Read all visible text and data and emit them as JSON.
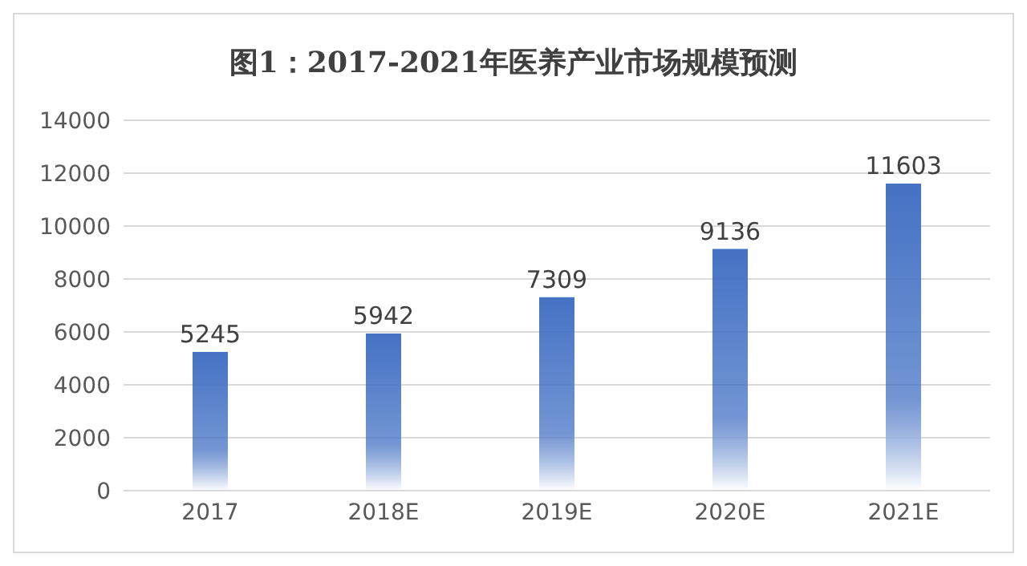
{
  "chart_data": {
    "type": "bar",
    "title": "图1：2017-2021年医养产业市场规模预测",
    "categories": [
      "2017",
      "2018E",
      "2019E",
      "2020E",
      "2021E"
    ],
    "values": [
      5245,
      5942,
      7309,
      9136,
      11603
    ],
    "color": "#4472c4",
    "ylim": [
      0,
      14000
    ],
    "yticks": [
      0,
      2000,
      4000,
      6000,
      8000,
      10000,
      12000,
      14000
    ],
    "grid": "y",
    "data_labels": true
  }
}
